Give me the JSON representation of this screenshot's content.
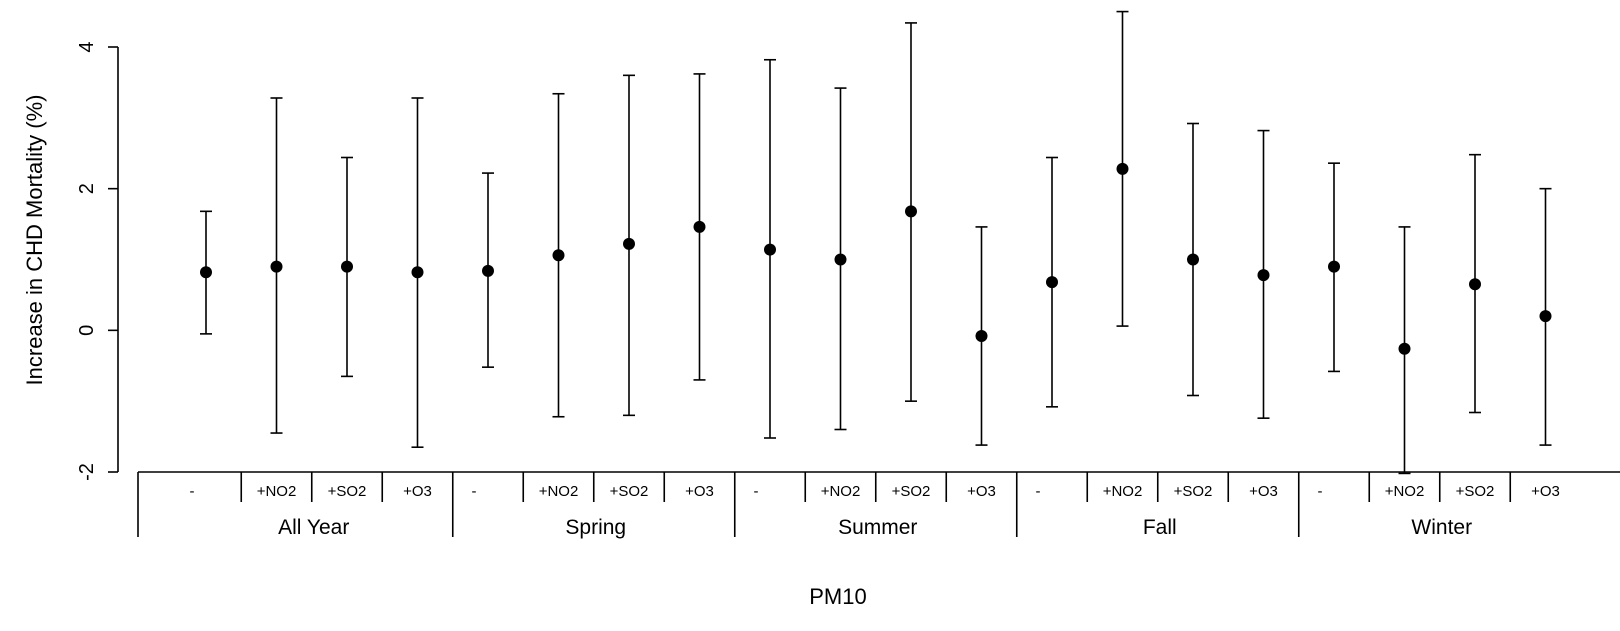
{
  "chart_data": {
    "type": "scatter",
    "subtype": "point-with-error-bars",
    "ylabel": "Increase in CHD Mortality (%)",
    "xlabel": "PM10",
    "ylim": [
      -2,
      4
    ],
    "yticks": [
      "-2",
      "0",
      "2",
      "4"
    ],
    "grid": false,
    "groups": [
      "All Year",
      "Spring",
      "Summer",
      "Fall",
      "Winter"
    ],
    "models": [
      "-",
      "+NO2",
      "+SO2",
      "+O3"
    ],
    "points": [
      {
        "group": "All Year",
        "model": "-",
        "estimate": 0.82,
        "lower": -0.05,
        "upper": 1.68
      },
      {
        "group": "All Year",
        "model": "+NO2",
        "estimate": 0.9,
        "lower": -1.45,
        "upper": 3.28
      },
      {
        "group": "All Year",
        "model": "+SO2",
        "estimate": 0.9,
        "lower": -0.65,
        "upper": 2.44
      },
      {
        "group": "All Year",
        "model": "+O3",
        "estimate": 0.82,
        "lower": -1.65,
        "upper": 3.28
      },
      {
        "group": "Spring",
        "model": "-",
        "estimate": 0.84,
        "lower": -0.52,
        "upper": 2.22
      },
      {
        "group": "Spring",
        "model": "+NO2",
        "estimate": 1.06,
        "lower": -1.22,
        "upper": 3.34
      },
      {
        "group": "Spring",
        "model": "+SO2",
        "estimate": 1.22,
        "lower": -1.2,
        "upper": 3.6
      },
      {
        "group": "Spring",
        "model": "+O3",
        "estimate": 1.46,
        "lower": -0.7,
        "upper": 3.62
      },
      {
        "group": "Summer",
        "model": "-",
        "estimate": 1.14,
        "lower": -1.52,
        "upper": 3.82
      },
      {
        "group": "Summer",
        "model": "+NO2",
        "estimate": 1.0,
        "lower": -1.4,
        "upper": 3.42
      },
      {
        "group": "Summer",
        "model": "+SO2",
        "estimate": 1.68,
        "lower": -1.0,
        "upper": 4.34
      },
      {
        "group": "Summer",
        "model": "+O3",
        "estimate": -0.08,
        "lower": -1.62,
        "upper": 1.46
      },
      {
        "group": "Fall",
        "model": "-",
        "estimate": 0.68,
        "lower": -1.08,
        "upper": 2.44
      },
      {
        "group": "Fall",
        "model": "+NO2",
        "estimate": 2.28,
        "lower": 0.06,
        "upper": 4.5
      },
      {
        "group": "Fall",
        "model": "+SO2",
        "estimate": 1.0,
        "lower": -0.92,
        "upper": 2.92
      },
      {
        "group": "Fall",
        "model": "+O3",
        "estimate": 0.78,
        "lower": -1.24,
        "upper": 2.82
      },
      {
        "group": "Winter",
        "model": "-",
        "estimate": 0.9,
        "lower": -0.58,
        "upper": 2.36
      },
      {
        "group": "Winter",
        "model": "+NO2",
        "estimate": -0.26,
        "lower": -2.02,
        "upper": 1.46
      },
      {
        "group": "Winter",
        "model": "+SO2",
        "estimate": 0.65,
        "lower": -1.16,
        "upper": 2.48
      },
      {
        "group": "Winter",
        "model": "+O3",
        "estimate": 0.2,
        "lower": -1.62,
        "upper": 2.0
      }
    ]
  }
}
